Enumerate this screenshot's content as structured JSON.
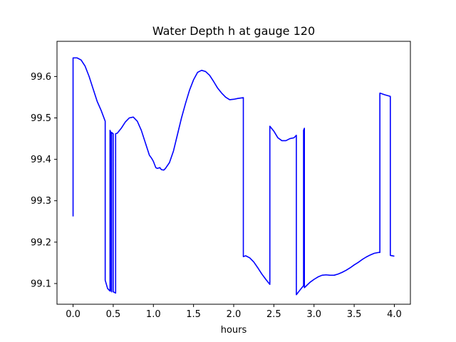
{
  "chart_data": {
    "type": "line",
    "title": "Water Depth h at gauge 120",
    "xlabel": "hours",
    "ylabel": "",
    "xlim": [
      -0.2,
      4.2
    ],
    "ylim": [
      99.05,
      99.685
    ],
    "xticks": [
      0.0,
      0.5,
      1.0,
      1.5,
      2.0,
      2.5,
      3.0,
      3.5,
      4.0
    ],
    "xtick_labels": [
      "0.0",
      "0.5",
      "1.0",
      "1.5",
      "2.0",
      "2.5",
      "3.0",
      "3.5",
      "4.0"
    ],
    "yticks": [
      99.1,
      99.2,
      99.3,
      99.4,
      99.5,
      99.6
    ],
    "ytick_labels": [
      "99.1",
      "99.2",
      "99.3",
      "99.4",
      "99.5",
      "99.6"
    ],
    "grid": false,
    "legend": "none",
    "series": [
      {
        "color": "#0000ff",
        "x": [
          0.0,
          0.0,
          0.05,
          0.1,
          0.15,
          0.2,
          0.25,
          0.3,
          0.35,
          0.4,
          0.4,
          0.43,
          0.46,
          0.46,
          0.47,
          0.47,
          0.48,
          0.48,
          0.5,
          0.5,
          0.53,
          0.53,
          0.55,
          0.6,
          0.65,
          0.7,
          0.75,
          0.8,
          0.85,
          0.9,
          0.95,
          0.98,
          1.0,
          1.03,
          1.05,
          1.08,
          1.1,
          1.13,
          1.15,
          1.2,
          1.25,
          1.3,
          1.35,
          1.4,
          1.45,
          1.5,
          1.55,
          1.6,
          1.65,
          1.7,
          1.75,
          1.8,
          1.85,
          1.9,
          1.95,
          2.0,
          2.05,
          2.12,
          2.12,
          2.15,
          2.2,
          2.25,
          2.3,
          2.35,
          2.4,
          2.45,
          2.45,
          2.5,
          2.55,
          2.6,
          2.65,
          2.7,
          2.75,
          2.78,
          2.78,
          2.82,
          2.87,
          2.87,
          2.88,
          2.88,
          2.95,
          3.0,
          3.05,
          3.1,
          3.15,
          3.2,
          3.25,
          3.3,
          3.35,
          3.4,
          3.45,
          3.5,
          3.55,
          3.6,
          3.65,
          3.7,
          3.75,
          3.8,
          3.82,
          3.82,
          3.88,
          3.95,
          3.95,
          4.0
        ],
        "y": [
          99.262,
          99.645,
          99.645,
          99.64,
          99.625,
          99.6,
          99.57,
          99.54,
          99.518,
          99.492,
          99.108,
          99.088,
          99.082,
          99.47,
          99.465,
          99.085,
          99.08,
          99.465,
          99.462,
          99.08,
          99.077,
          99.462,
          99.463,
          99.475,
          99.49,
          99.5,
          99.502,
          99.492,
          99.47,
          99.44,
          99.41,
          99.402,
          99.395,
          99.38,
          99.378,
          99.38,
          99.375,
          99.374,
          99.378,
          99.392,
          99.42,
          99.46,
          99.5,
          99.535,
          99.567,
          99.592,
          99.61,
          99.615,
          99.612,
          99.603,
          99.588,
          99.572,
          99.56,
          99.55,
          99.544,
          99.545,
          99.547,
          99.549,
          99.165,
          99.167,
          99.162,
          99.152,
          99.138,
          99.123,
          99.11,
          99.098,
          99.48,
          99.468,
          99.452,
          99.445,
          99.445,
          99.45,
          99.452,
          99.458,
          99.073,
          99.083,
          99.095,
          99.47,
          99.475,
          99.09,
          99.103,
          99.11,
          99.116,
          99.12,
          99.121,
          99.12,
          99.12,
          99.123,
          99.127,
          99.132,
          99.138,
          99.145,
          99.151,
          99.158,
          99.164,
          99.169,
          99.173,
          99.175,
          99.175,
          99.56,
          99.556,
          99.552,
          99.168,
          99.166
        ]
      }
    ]
  }
}
